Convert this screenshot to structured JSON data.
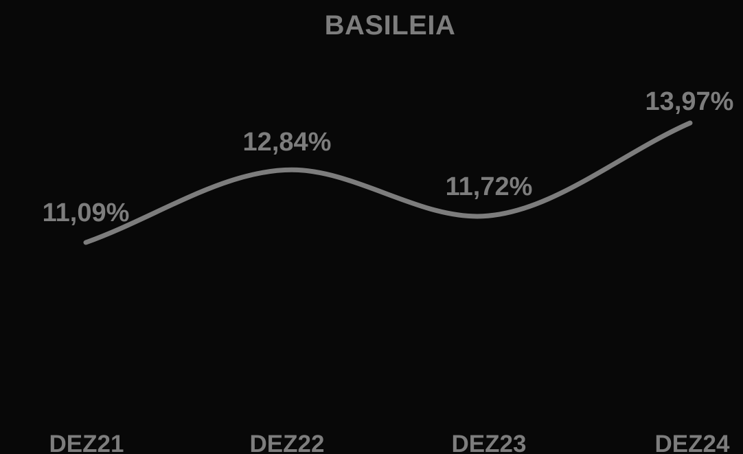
{
  "chart_data": {
    "type": "line",
    "title": "BASILEIA",
    "xlabel": "",
    "ylabel": "",
    "categories": [
      "DEZ21",
      "DEZ22",
      "DEZ23",
      "DEZ24"
    ],
    "series": [
      {
        "values": [
          11.09,
          12.84,
          11.72,
          13.97
        ],
        "labels": [
          "11,09%",
          "12,84%",
          "11,72%",
          "13,97%"
        ]
      }
    ],
    "smooth": true,
    "grid": false,
    "legend": "none",
    "colors": {
      "background": "#080808",
      "line": "#7d7d7d",
      "text": "#7d7d7d"
    }
  }
}
